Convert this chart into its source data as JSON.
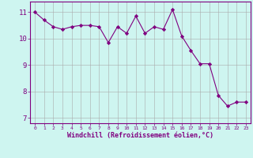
{
  "x": [
    0,
    1,
    2,
    3,
    4,
    5,
    6,
    7,
    8,
    9,
    10,
    11,
    12,
    13,
    14,
    15,
    16,
    17,
    18,
    19,
    20,
    21,
    22,
    23
  ],
  "y": [
    11.0,
    10.7,
    10.45,
    10.35,
    10.45,
    10.5,
    10.5,
    10.45,
    9.85,
    10.45,
    10.2,
    10.85,
    10.2,
    10.45,
    10.35,
    11.1,
    10.1,
    9.55,
    9.05,
    9.05,
    7.85,
    7.45,
    7.6,
    7.6
  ],
  "line_color": "#800080",
  "marker": "D",
  "marker_size": 2.2,
  "bg_color": "#cef5f0",
  "grid_color": "#aaaaaa",
  "xlabel": "Windchill (Refroidissement éolien,°C)",
  "xlabel_color": "#800080",
  "tick_color": "#800080",
  "ylim": [
    6.8,
    11.4
  ],
  "xlim": [
    -0.5,
    23.5
  ],
  "yticks": [
    7,
    8,
    9,
    10,
    11
  ],
  "xticks": [
    0,
    1,
    2,
    3,
    4,
    5,
    6,
    7,
    8,
    9,
    10,
    11,
    12,
    13,
    14,
    15,
    16,
    17,
    18,
    19,
    20,
    21,
    22,
    23
  ],
  "spine_color": "#800080",
  "title_color": "#800080"
}
